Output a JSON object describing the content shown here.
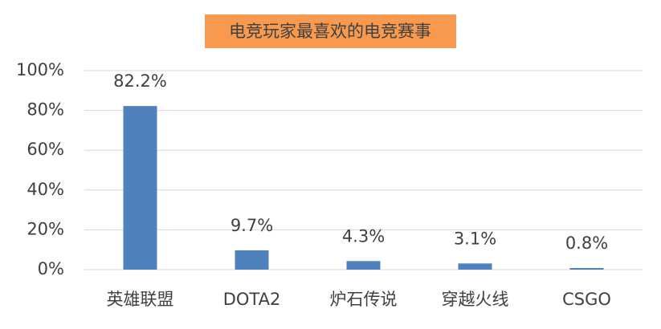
{
  "chart_data": {
    "type": "bar",
    "title": "电竞玩家最喜欢的电竞赛事",
    "categories": [
      "英雄联盟",
      "DOTA2",
      "炉石传说",
      "穿越火线",
      "CSGO"
    ],
    "values": [
      82.2,
      9.7,
      4.3,
      3.1,
      0.8
    ],
    "value_labels": [
      "82.2%",
      "9.7%",
      "4.3%",
      "3.1%",
      "0.8%"
    ],
    "color": "#4f81bd",
    "ylim": [
      0,
      100
    ],
    "yticks": [
      {
        "value": 0,
        "label": "0%"
      },
      {
        "value": 20,
        "label": "20%"
      },
      {
        "value": 40,
        "label": "40%"
      },
      {
        "value": 60,
        "label": "60%"
      },
      {
        "value": 80,
        "label": "80%"
      },
      {
        "value": 100,
        "label": "100%"
      }
    ],
    "grid": true
  }
}
